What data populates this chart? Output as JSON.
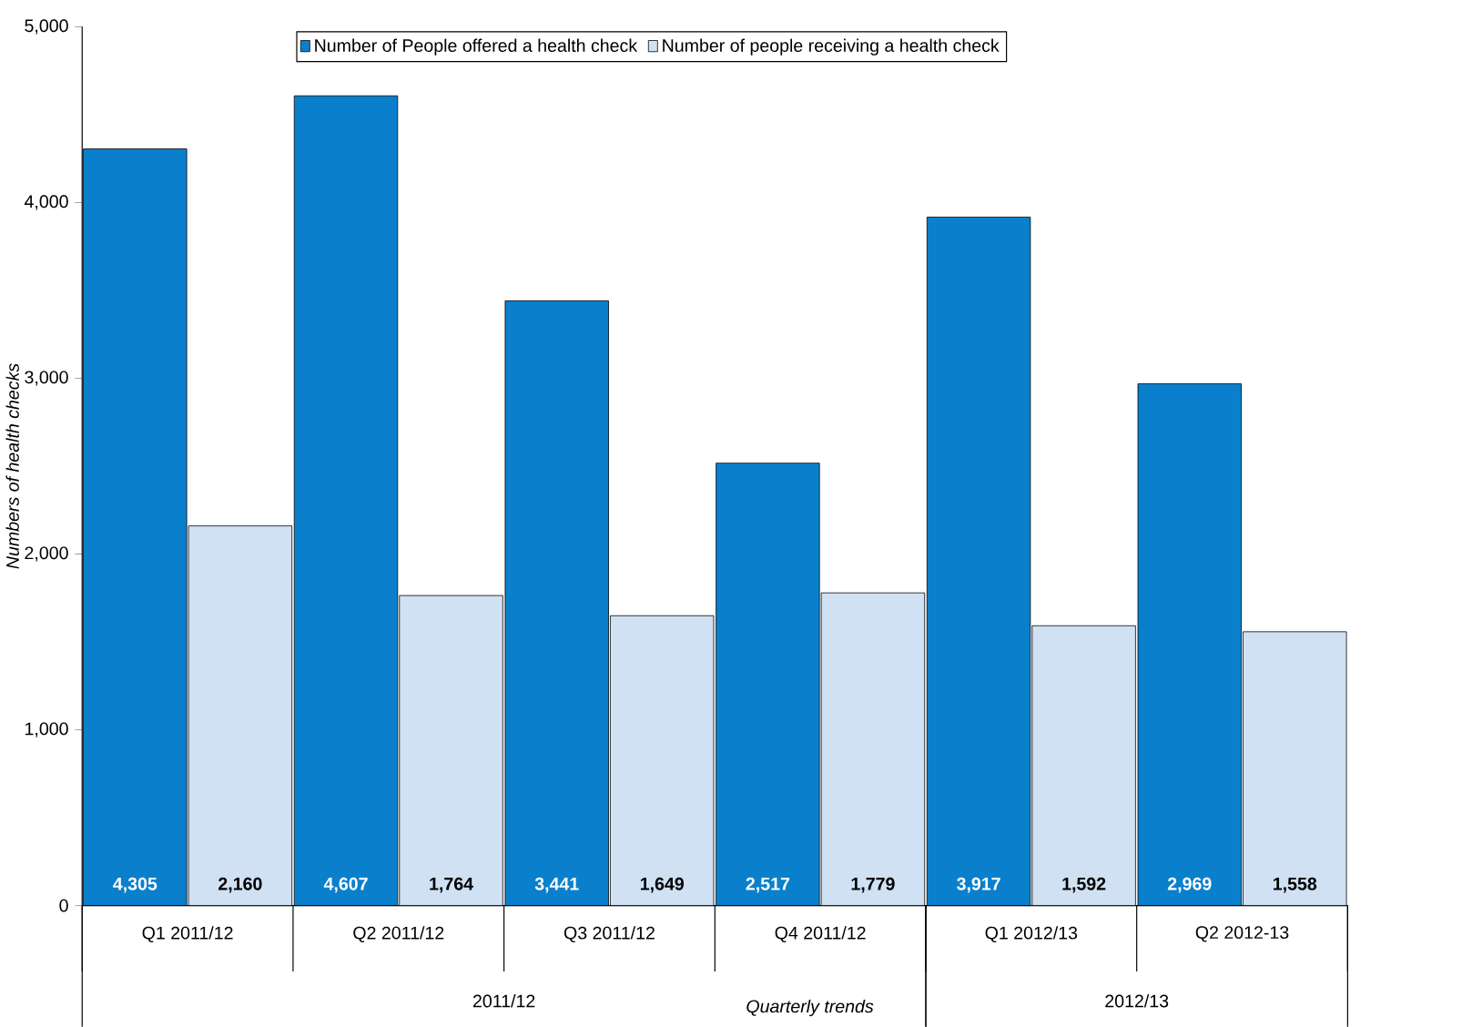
{
  "chart_data": {
    "type": "bar",
    "xlabel": "Quarterly trends",
    "ylabel": "Numbers of health checks",
    "categories": [
      "Q1 2011/12",
      "Q2 2011/12",
      "Q3 2011/12",
      "Q4 2011/12",
      "Q1 2012/13",
      "Q2 2012-13"
    ],
    "series": [
      {
        "name": "Number of People offered  a health check",
        "color": "#0a80cc",
        "values": [
          4305,
          4607,
          3441,
          2517,
          3917,
          2969
        ],
        "value_labels": [
          "4,305",
          "4,607",
          "3,441",
          "2,517",
          "3,917",
          "2,969"
        ]
      },
      {
        "name": "Number of people receiving a health check",
        "color": "#d0e1f3",
        "values": [
          2160,
          1764,
          1649,
          1779,
          1592,
          1558
        ],
        "value_labels": [
          "2,160",
          "1,764",
          "1,649",
          "1,779",
          "1,592",
          "1,558"
        ]
      }
    ],
    "ylim": [
      0,
      5000
    ],
    "yticks": [
      0,
      {
        "value": 1000,
        "label": "1,000"
      },
      {
        "value": 2000,
        "label": "2,000"
      },
      {
        "value": 3000,
        "label": "3,000"
      },
      {
        "value": 4000,
        "label": "4,000"
      },
      {
        "value": 5000,
        "label": "5,000"
      }
    ],
    "annotations": [
      "2011/12",
      "2012/13"
    ],
    "legend": "top",
    "grid": false
  }
}
